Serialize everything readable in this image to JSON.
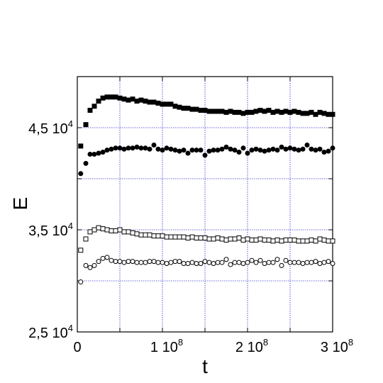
{
  "chart_data": {
    "type": "scatter",
    "title": "",
    "xlabel": "t",
    "ylabel": "E",
    "xlim": [
      0,
      300000000
    ],
    "ylim": [
      25000,
      50000
    ],
    "grid": true,
    "grid_color": "#3333cc",
    "x_ticks": [
      {
        "value": 0,
        "base": "0",
        "exp": ""
      },
      {
        "value": 100000000,
        "base": "1 10",
        "exp": "8"
      },
      {
        "value": 200000000,
        "base": "2 10",
        "exp": "8"
      },
      {
        "value": 300000000,
        "base": "3 10",
        "exp": "8"
      }
    ],
    "y_ticks": [
      {
        "value": 25000,
        "base": "2,5 10",
        "exp": "4"
      },
      {
        "value": 35000,
        "base": "3,5 10",
        "exp": "4"
      },
      {
        "value": 45000,
        "base": "4,5 10",
        "exp": "4"
      }
    ],
    "x_grid": [
      50000000,
      100000000,
      150000000,
      200000000,
      250000000
    ],
    "y_grid": [
      30000,
      35000,
      40000,
      45000
    ],
    "x": [
      4000000,
      10000000,
      15000000,
      20000000,
      25000000,
      30000000,
      35000000,
      40000000,
      45000000,
      50000000,
      55000000,
      60000000,
      65000000,
      70000000,
      75000000,
      80000000,
      85000000,
      90000000,
      95000000,
      100000000,
      105000000,
      110000000,
      115000000,
      120000000,
      125000000,
      130000000,
      135000000,
      140000000,
      145000000,
      150000000,
      155000000,
      160000000,
      165000000,
      170000000,
      175000000,
      180000000,
      185000000,
      190000000,
      195000000,
      200000000,
      205000000,
      210000000,
      215000000,
      220000000,
      225000000,
      230000000,
      235000000,
      240000000,
      245000000,
      250000000,
      255000000,
      260000000,
      265000000,
      270000000,
      275000000,
      280000000,
      285000000,
      290000000,
      295000000,
      300000000
    ],
    "series": [
      {
        "marker": "filled-square",
        "values": [
          43200,
          45300,
          46700,
          47100,
          47600,
          47900,
          48000,
          48000,
          48000,
          47900,
          47800,
          47700,
          47800,
          47600,
          47700,
          47600,
          47500,
          47500,
          47400,
          47300,
          47300,
          47300,
          47100,
          47000,
          46900,
          46900,
          46800,
          46800,
          46700,
          46700,
          46600,
          46600,
          46600,
          46600,
          46500,
          46600,
          46500,
          46500,
          46400,
          46500,
          46500,
          46600,
          46700,
          46600,
          46700,
          46500,
          46600,
          46500,
          46600,
          46500,
          46600,
          46500,
          46400,
          46400,
          46500,
          46300,
          46500,
          46400,
          46300,
          46300
        ]
      },
      {
        "marker": "filled-circle",
        "values": [
          40500,
          41500,
          42400,
          42400,
          42500,
          42600,
          42800,
          42900,
          43000,
          43000,
          42900,
          43000,
          43000,
          43100,
          43000,
          43000,
          42900,
          43300,
          42900,
          42800,
          43000,
          42900,
          42800,
          42700,
          42800,
          42500,
          42800,
          42800,
          42800,
          42300,
          42700,
          42800,
          42800,
          42900,
          43100,
          42900,
          42800,
          42600,
          43000,
          42500,
          42800,
          42900,
          42800,
          42700,
          42800,
          42900,
          42800,
          43100,
          42900,
          43000,
          42900,
          42800,
          42900,
          43300,
          42900,
          42800,
          42900,
          42600,
          42700,
          43000
        ]
      },
      {
        "marker": "open-square",
        "values": [
          33000,
          34100,
          34800,
          35000,
          35200,
          35100,
          35000,
          34900,
          34900,
          35000,
          34800,
          34800,
          34700,
          34600,
          34500,
          34500,
          34500,
          34400,
          34400,
          34400,
          34300,
          34300,
          34300,
          34300,
          34300,
          34200,
          34300,
          34200,
          34200,
          34200,
          34100,
          34100,
          34200,
          34100,
          34000,
          34100,
          34100,
          34200,
          34000,
          34100,
          34000,
          34000,
          34100,
          34000,
          34000,
          33900,
          34000,
          33900,
          34000,
          34000,
          34000,
          33900,
          33900,
          33900,
          34000,
          33900,
          34100,
          34000,
          33900,
          33900
        ]
      },
      {
        "marker": "open-circle",
        "values": [
          29900,
          31500,
          31300,
          31500,
          31900,
          32200,
          32300,
          32000,
          31900,
          31900,
          31800,
          31900,
          31900,
          31800,
          31800,
          31800,
          31900,
          31900,
          31800,
          31800,
          31700,
          31800,
          31900,
          31900,
          31700,
          31700,
          31800,
          31700,
          31700,
          31900,
          31800,
          31700,
          31800,
          31800,
          32100,
          31600,
          31800,
          31800,
          31700,
          31800,
          32000,
          31800,
          32000,
          31700,
          31800,
          31800,
          32100,
          31500,
          32000,
          31800,
          31800,
          31800,
          31700,
          31800,
          31800,
          31900,
          31700,
          31800,
          31900,
          31700
        ]
      }
    ]
  }
}
